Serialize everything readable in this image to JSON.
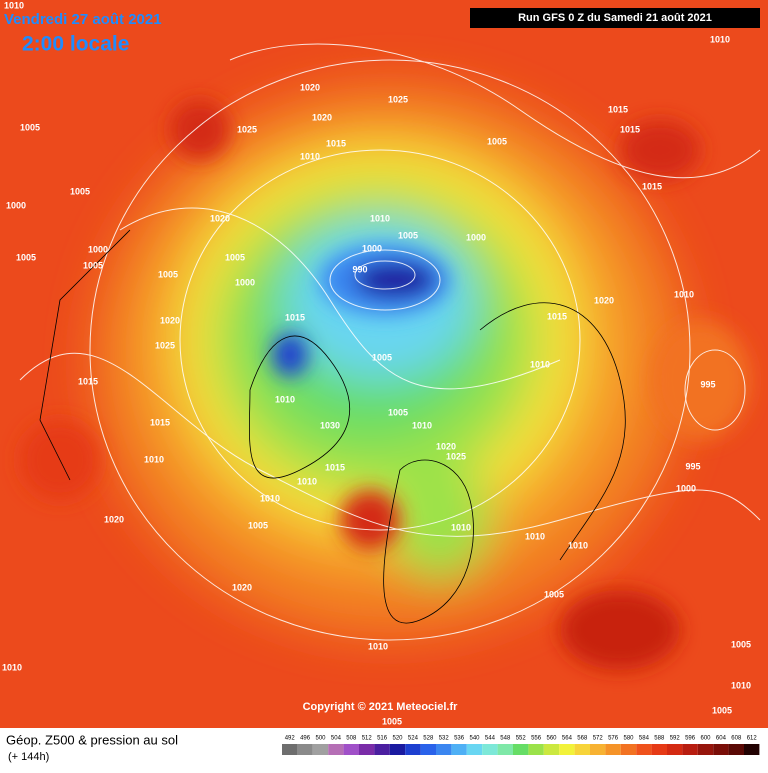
{
  "header": {
    "date": "Vendredi 27 août 2021",
    "time": "2:00 locale",
    "run": "Run GFS 0 Z du Samedi 21 août 2021"
  },
  "copyright": "Copyright © 2021 Meteociel.fr",
  "footer": {
    "title": "Géop. Z500 & pression au sol",
    "lead": "(+ 144h)"
  },
  "colorbar": {
    "levels": [
      492,
      496,
      500,
      504,
      508,
      512,
      516,
      520,
      524,
      528,
      532,
      536,
      540,
      544,
      548,
      552,
      556,
      560,
      564,
      568,
      572,
      576,
      580,
      584,
      588,
      592,
      596,
      600,
      604,
      608,
      612
    ],
    "colors": [
      "#6e6e6e",
      "#8a8a8a",
      "#a0a0a0",
      "#b56fb5",
      "#a050c8",
      "#7a2ca8",
      "#4b1fa0",
      "#1a1aa0",
      "#1d3fd0",
      "#2a62ea",
      "#3b86f0",
      "#4fb0f5",
      "#69d6f2",
      "#7de8d8",
      "#7fe8a8",
      "#66dd66",
      "#9be24a",
      "#cbe840",
      "#f2f23a",
      "#f7d43a",
      "#f7b232",
      "#f59328",
      "#f27222",
      "#ef521c",
      "#e63a16",
      "#d42a12",
      "#b81d10",
      "#96150c",
      "#7a0e08",
      "#5a0905",
      "#220202"
    ]
  },
  "isobar_labels": [
    "1010",
    "1010",
    "1020",
    "1025",
    "1015",
    "1005",
    "1020",
    "1025",
    "1015",
    "1015",
    "1010",
    "1005",
    "1005",
    "1015",
    "1000",
    "1020",
    "1010",
    "1005",
    "1000",
    "1000",
    "990",
    "1000",
    "1005",
    "1005",
    "1005",
    "1005",
    "1000",
    "1020",
    "1010",
    "1020",
    "1015",
    "1015",
    "1025",
    "1005",
    "1010",
    "1015",
    "995",
    "1010",
    "1005",
    "1030",
    "1010",
    "1015",
    "1020",
    "1025",
    "1010",
    "1015",
    "995",
    "1010",
    "1000",
    "1010",
    "1020",
    "1005",
    "1010",
    "1010",
    "1010",
    "1020",
    "1005",
    "1010",
    "1010",
    "1005",
    "1010",
    "1005",
    "1005"
  ]
}
